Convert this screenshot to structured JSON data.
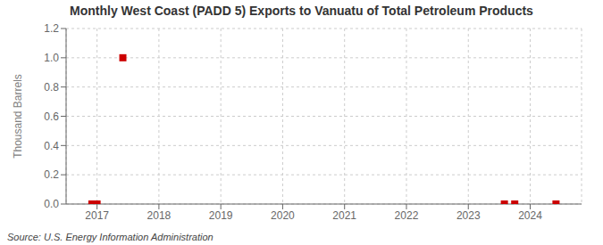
{
  "chart_data": {
    "type": "scatter",
    "title": "Monthly West Coast (PADD 5) Exports to Vanuatu of Total Petroleum Products",
    "y_label": "Thousand Barrels",
    "annotations": [
      "Source: U.S. Energy Information Administration"
    ],
    "x": [
      2016.917,
      2017.0,
      2017.417,
      2023.583,
      2023.75,
      2024.417
    ],
    "values": [
      0.0,
      0.0,
      1.0,
      0.0,
      0.0,
      0.0
    ],
    "color": "#cc0000",
    "marker": "square",
    "xlim": [
      2016.5,
      2024.83
    ],
    "ylim": [
      0.0,
      1.2
    ],
    "xticks": [
      2017,
      2018,
      2019,
      2020,
      2021,
      2022,
      2023,
      2024
    ],
    "yticks": [
      {
        "value": 0.0,
        "label": "0.0"
      },
      {
        "value": 0.2,
        "label": "0.2"
      },
      {
        "value": 0.4,
        "label": "0.4"
      },
      {
        "value": 0.6,
        "label": "0.6"
      },
      {
        "value": 0.8,
        "label": "0.8"
      },
      {
        "value": 1.0,
        "label": "1.0"
      },
      {
        "value": 1.2,
        "label": "1.2"
      }
    ],
    "grid": true
  }
}
